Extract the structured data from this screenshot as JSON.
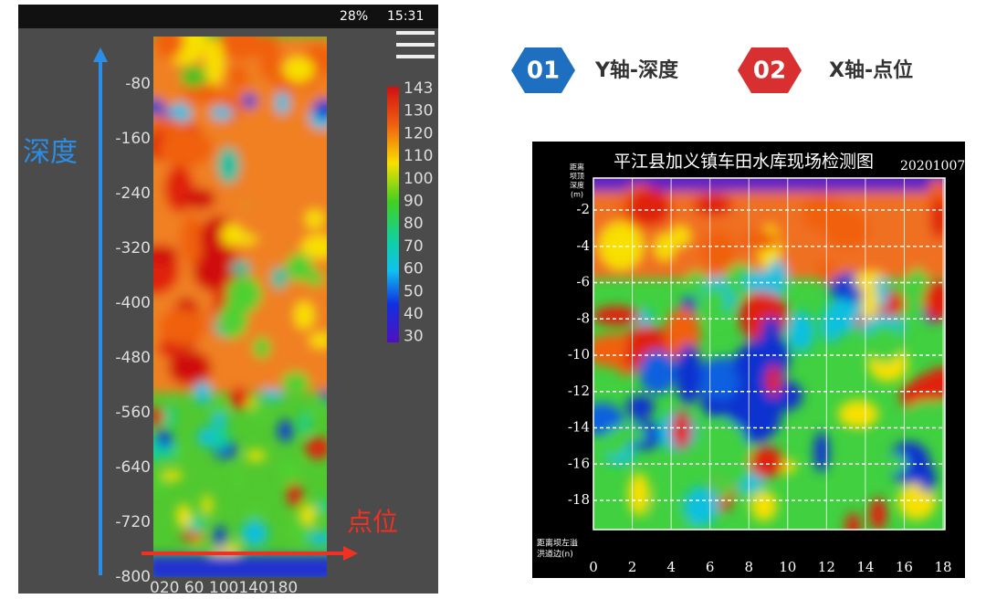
{
  "status_bar": {
    "battery": "28%",
    "time": "15:31"
  },
  "left_panel": {
    "y_label": "深度",
    "x_label": "点位",
    "yticks": [
      -80,
      -160,
      -240,
      -320,
      -400,
      -480,
      -560,
      -640,
      -720,
      -800
    ],
    "xticks": "020 60 100140180",
    "legend": [
      143,
      130,
      120,
      110,
      100,
      90,
      80,
      70,
      60,
      50,
      40,
      30
    ]
  },
  "badges": [
    {
      "number": "01",
      "text": "Y轴-深度"
    },
    {
      "number": "02",
      "text": "X轴-点位"
    }
  ],
  "right_panel": {
    "title": "平江县加义镇车田水库现场检测图",
    "date": "20201007",
    "y_axis_title": [
      "距离",
      "坝顶",
      "深度",
      "(m)"
    ],
    "x_axis_title": [
      "距离坝左溢",
      "洪道边(n)"
    ],
    "yticks": [
      -2,
      -4,
      -6,
      -8,
      -10,
      -12,
      -14,
      -16,
      -18
    ],
    "xticks": [
      0,
      2,
      4,
      6,
      8,
      10,
      12,
      14,
      16,
      18
    ]
  }
}
